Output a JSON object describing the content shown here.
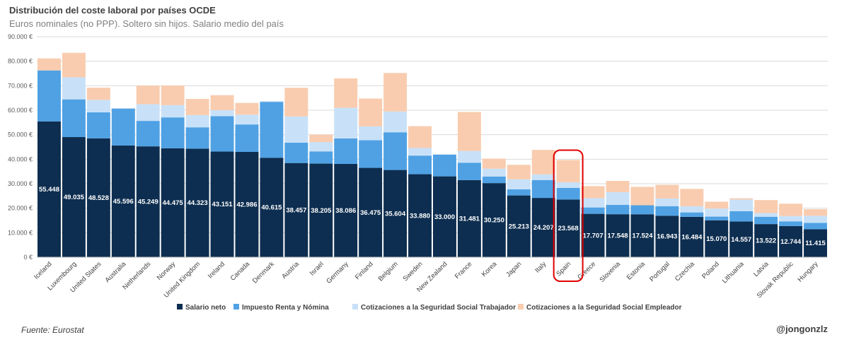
{
  "title": "Distribución del coste laboral por países OCDE",
  "subtitle": "Euros nominales (no PPP). Soltero sin hijos. Salario medio del país",
  "source": "Fuente: Eurostat",
  "handle": "@jongonzlz",
  "chart_data": {
    "type": "bar",
    "stacked": true,
    "categories": [
      "Iceland",
      "Luxembourg",
      "United States",
      "Australia",
      "Netherlands",
      "Norway",
      "United Kingdom",
      "Ireland",
      "Canada",
      "Denmark",
      "Austria",
      "Israel",
      "Germany",
      "Finland",
      "Belgium",
      "Sweden",
      "New Zealand",
      "France",
      "Korea",
      "Japan",
      "Italy",
      "Spain",
      "Greece",
      "Slovenia",
      "Estonia",
      "Portugal",
      "Czechia",
      "Poland",
      "Lithuania",
      "Latvia",
      "Slovak Republic",
      "Hungary"
    ],
    "ylim": [
      0,
      90000
    ],
    "yticks": [
      0,
      10000,
      20000,
      30000,
      40000,
      50000,
      60000,
      70000,
      80000,
      90000
    ],
    "ytick_labels": [
      "0 €",
      "10.000 €",
      "20.000 €",
      "30.000 €",
      "40.000 €",
      "50.000 €",
      "60.000 €",
      "70.000 €",
      "80.000 €",
      "90.000 €"
    ],
    "grid": true,
    "legend_position": "bottom",
    "highlight_category": "Spain",
    "highlight_color": "#e00000",
    "series": [
      {
        "name": "Salario neto",
        "color": "#0d2e50",
        "values": [
          55448,
          49035,
          48528,
          45596,
          45249,
          44475,
          44323,
          43151,
          42986,
          40615,
          38457,
          38205,
          38086,
          36475,
          35604,
          33880,
          33000,
          31481,
          30250,
          25213,
          24207,
          23568,
          17707,
          17548,
          17524,
          16943,
          16484,
          15070,
          14557,
          13522,
          12744,
          11415
        ],
        "labels": [
          "55.448",
          "49.035",
          "48.528",
          "45.596",
          "45.249",
          "44.475",
          "44.323",
          "43.151",
          "42.986",
          "40.615",
          "38.457",
          "38.205",
          "38.086",
          "36.475",
          "35.604",
          "33.880",
          "33.000",
          "31.481",
          "30.250",
          "25.213",
          "24.207",
          "23.568",
          "17.707",
          "17.548",
          "17.524",
          "16.943",
          "16.484",
          "15.070",
          "14.557",
          "13.522",
          "12.744",
          "11.415"
        ]
      },
      {
        "name": "Impuesto Renta y Nómina",
        "color": "#4fa1e4",
        "values": [
          20800,
          15400,
          10600,
          15100,
          10400,
          12600,
          8700,
          14400,
          11200,
          22800,
          8300,
          5000,
          10400,
          11300,
          15400,
          7600,
          8900,
          7100,
          2700,
          2500,
          7300,
          4700,
          2600,
          3800,
          3700,
          3900,
          1800,
          1500,
          4200,
          3000,
          1900,
          2600
        ]
      },
      {
        "name": "Cotizaciones a la Seguridad Social Trabajador",
        "color": "#c8e1f8",
        "values": [
          0,
          9000,
          5100,
          0,
          6800,
          5000,
          5000,
          2500,
          4000,
          300,
          10700,
          3800,
          12500,
          5600,
          8500,
          3100,
          0,
          4800,
          3200,
          4100,
          2300,
          2300,
          3800,
          5200,
          0,
          3100,
          2500,
          3300,
          4800,
          1500,
          2200,
          2900
        ]
      },
      {
        "name": "Cotizaciones a la Seguridad Social Empleador",
        "color": "#f9ccaf",
        "values": [
          4900,
          10000,
          5000,
          0,
          7600,
          8000,
          6600,
          6100,
          4800,
          0,
          11700,
          3000,
          12000,
          11400,
          15700,
          8900,
          0,
          15900,
          4100,
          5900,
          10000,
          9100,
          4900,
          4600,
          7500,
          5600,
          7100,
          2800,
          500,
          5300,
          5000,
          2700
        ]
      }
    ]
  }
}
